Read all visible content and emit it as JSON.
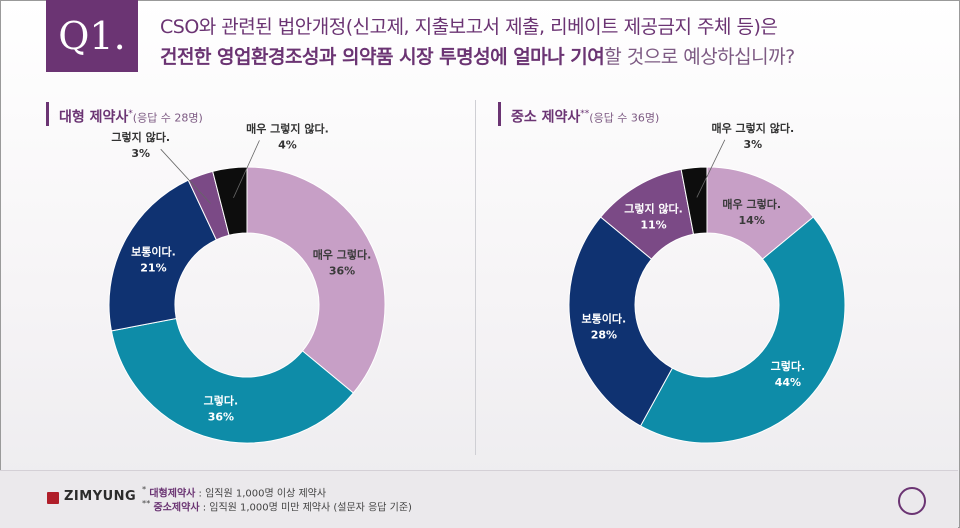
{
  "header": {
    "badge": "Q1.",
    "line1": "CSO와 관련된 법안개정(신고제, 지출보고서 제출, 리베이트 제공금지 주체 등)은",
    "line2_strong": "건전한 영업환경조성과 의약품 시장 투명성에 얼마나 기여",
    "line2_rest": "할 것으로 예상하십니까?"
  },
  "left_section": {
    "title": "대형 제약사",
    "mark": "*",
    "sub": "(응답 수 28명)"
  },
  "right_section": {
    "title": "중소 제약사",
    "mark": "**",
    "sub": "(응답 수 36명)"
  },
  "colors": {
    "very_yes": "#c79fc6",
    "yes": "#0e8ca8",
    "neutral": "#0f3271",
    "no": "#7b4a86",
    "not_at_all": "#0d0d0d",
    "brand": "#6b3473"
  },
  "chart_data": [
    {
      "type": "pie",
      "title": "대형 제약사* (응답 수 28명)",
      "labels": [
        "매우 그렇다.",
        "그렇다.",
        "보통이다.",
        "그렇지 않다.",
        "매우 그렇지 않다."
      ],
      "values": [
        36,
        36,
        21,
        3,
        4
      ],
      "value_labels": [
        "36%",
        "36%",
        "21%",
        "3%",
        "4%"
      ]
    },
    {
      "type": "pie",
      "title": "중소 제약사** (응답 수 36명)",
      "labels": [
        "매우 그렇다.",
        "그렇다.",
        "보통이다.",
        "그렇지 않다.",
        "매우 그렇지 않다."
      ],
      "values": [
        14,
        44,
        28,
        11,
        3
      ],
      "value_labels": [
        "14%",
        "44%",
        "28%",
        "11%",
        "3%"
      ]
    }
  ],
  "footer": {
    "logo": "ZIMYUNG",
    "note1_mark": "*",
    "note1_key": "대형제약사",
    "note1_text": " : 임직원 1,000명 이상 제약사",
    "note2_mark": "**",
    "note2_key": "중소제약사",
    "note2_text": " : 임직원 1,000명 미만 제약사 (설문자 응답 기준)"
  }
}
